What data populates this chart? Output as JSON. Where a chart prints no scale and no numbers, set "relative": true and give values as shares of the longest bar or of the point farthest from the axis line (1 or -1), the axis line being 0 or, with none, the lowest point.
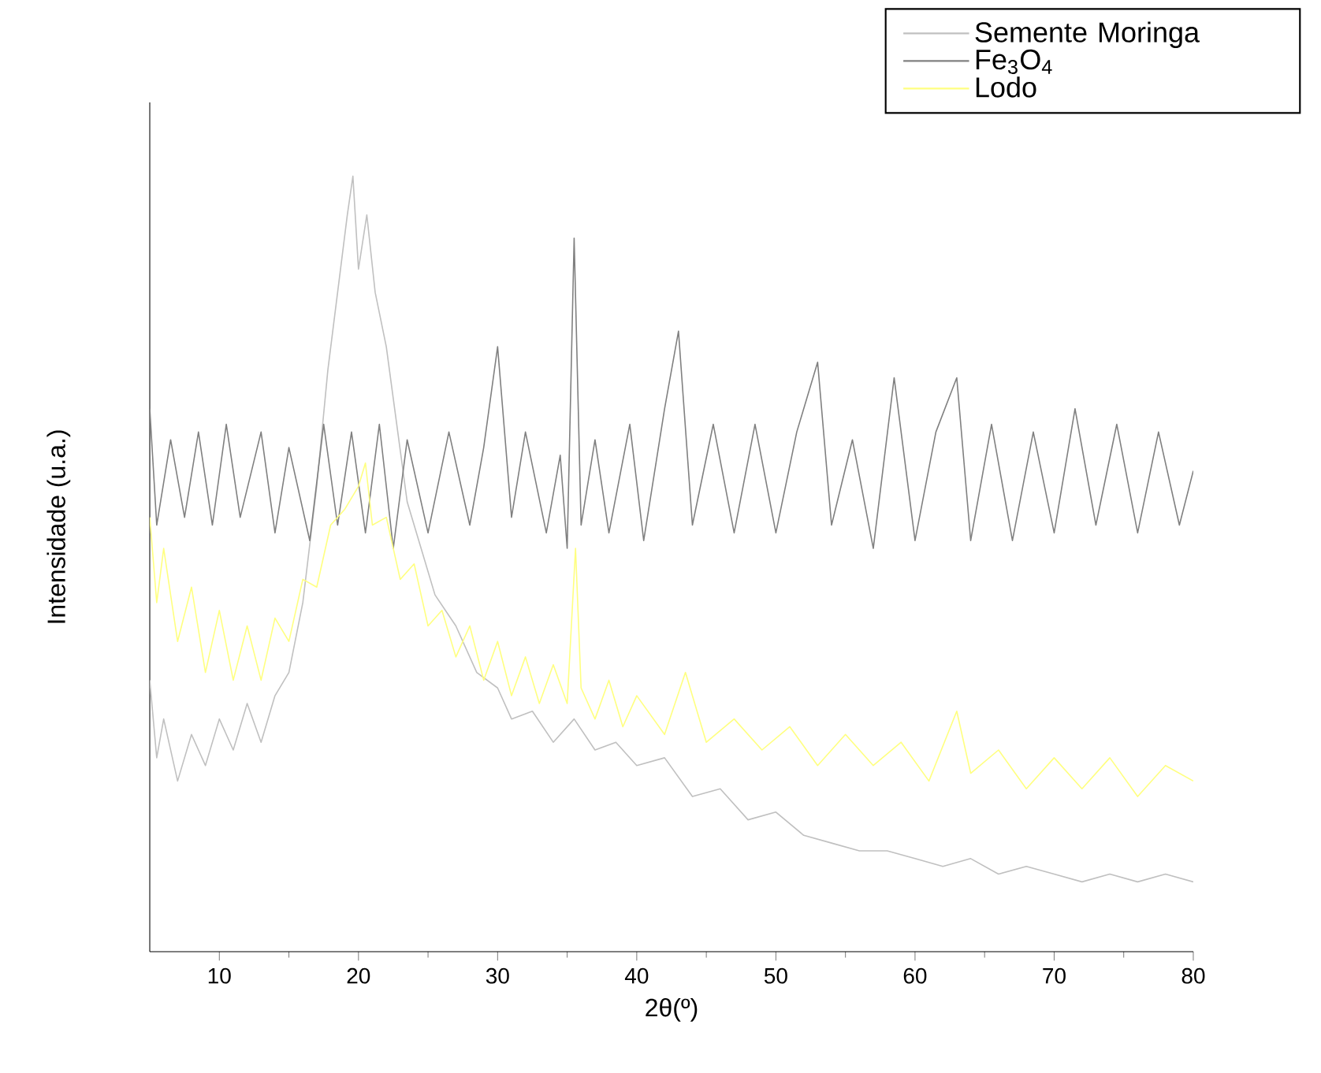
{
  "chart_data": {
    "type": "line",
    "relative": true,
    "xlabel": "2θ(º)",
    "ylabel": "Intensidade (u.a.)",
    "xlim": [
      5,
      80
    ],
    "xticks": [
      10,
      20,
      30,
      40,
      50,
      60,
      70,
      80
    ],
    "legend": "top right",
    "grid": false,
    "series": [
      {
        "name": "Semente Moringa",
        "color": "#c0c0c0",
        "x": [
          5,
          5.5,
          6,
          7,
          8,
          9,
          10,
          11,
          12,
          13,
          14,
          15,
          16,
          17,
          17.8,
          18.5,
          19.2,
          19.6,
          20,
          20.6,
          21.2,
          22,
          22.6,
          23.5,
          24.5,
          25.5,
          27,
          28.5,
          30,
          31,
          32.5,
          34,
          35.5,
          37,
          38.5,
          40,
          42,
          44,
          46,
          48,
          50,
          52,
          54,
          56,
          58,
          60,
          62,
          64,
          66,
          68,
          70,
          72,
          74,
          76,
          78,
          80
        ],
        "values": [
          0.35,
          0.25,
          0.3,
          0.22,
          0.28,
          0.24,
          0.3,
          0.26,
          0.32,
          0.27,
          0.33,
          0.36,
          0.45,
          0.6,
          0.75,
          0.85,
          0.95,
          1.0,
          0.88,
          0.95,
          0.85,
          0.78,
          0.7,
          0.58,
          0.52,
          0.46,
          0.42,
          0.36,
          0.34,
          0.3,
          0.31,
          0.27,
          0.3,
          0.26,
          0.27,
          0.24,
          0.25,
          0.2,
          0.21,
          0.17,
          0.18,
          0.15,
          0.14,
          0.13,
          0.13,
          0.12,
          0.11,
          0.12,
          0.1,
          0.11,
          0.1,
          0.09,
          0.1,
          0.09,
          0.1,
          0.09
        ]
      },
      {
        "name": "Fe$_{3}$O$_{4}$",
        "color": "#808080",
        "x": [
          5,
          5.5,
          6.5,
          7.5,
          8.5,
          9.5,
          10.5,
          11.5,
          13,
          14,
          15,
          16.5,
          17.5,
          18.5,
          19.5,
          20.5,
          21.5,
          22.5,
          23.5,
          25,
          26.5,
          28,
          29,
          30,
          31,
          32,
          33.5,
          34.5,
          35,
          35.5,
          36,
          37,
          38,
          39.5,
          40.5,
          42,
          43,
          44,
          45.5,
          47,
          48.5,
          50,
          51.5,
          53,
          54,
          55.5,
          57,
          58.5,
          60,
          61.5,
          63,
          64,
          65.5,
          67,
          68.5,
          70,
          71.5,
          73,
          74.5,
          76,
          77.5,
          79,
          80
        ],
        "values": [
          0.7,
          0.55,
          0.66,
          0.56,
          0.67,
          0.55,
          0.68,
          0.56,
          0.67,
          0.54,
          0.65,
          0.53,
          0.68,
          0.55,
          0.67,
          0.54,
          0.68,
          0.52,
          0.66,
          0.54,
          0.67,
          0.55,
          0.65,
          0.78,
          0.56,
          0.67,
          0.54,
          0.64,
          0.52,
          0.92,
          0.55,
          0.66,
          0.54,
          0.68,
          0.53,
          0.7,
          0.8,
          0.55,
          0.68,
          0.54,
          0.68,
          0.54,
          0.67,
          0.76,
          0.55,
          0.66,
          0.52,
          0.74,
          0.53,
          0.67,
          0.74,
          0.53,
          0.68,
          0.53,
          0.67,
          0.54,
          0.7,
          0.55,
          0.68,
          0.54,
          0.67,
          0.55,
          0.62
        ]
      },
      {
        "name": "Lodo",
        "color": "#ffff80",
        "x": [
          5,
          5.5,
          6,
          7,
          8,
          9,
          10,
          11,
          12,
          13,
          14,
          15,
          16,
          17,
          18,
          19,
          20,
          20.5,
          21,
          22,
          23,
          24,
          25,
          26,
          27,
          28,
          29,
          30,
          31,
          32,
          33,
          34,
          35,
          35.6,
          36,
          37,
          38,
          39,
          40,
          42,
          43.5,
          45,
          47,
          49,
          51,
          53,
          55,
          57,
          59,
          61,
          63,
          64,
          66,
          68,
          70,
          72,
          74,
          76,
          78,
          80
        ],
        "values": [
          0.56,
          0.45,
          0.52,
          0.4,
          0.47,
          0.36,
          0.44,
          0.35,
          0.42,
          0.35,
          0.43,
          0.4,
          0.48,
          0.47,
          0.55,
          0.57,
          0.6,
          0.63,
          0.55,
          0.56,
          0.48,
          0.5,
          0.42,
          0.44,
          0.38,
          0.42,
          0.35,
          0.4,
          0.33,
          0.38,
          0.32,
          0.37,
          0.32,
          0.52,
          0.34,
          0.3,
          0.35,
          0.29,
          0.33,
          0.28,
          0.36,
          0.27,
          0.3,
          0.26,
          0.29,
          0.24,
          0.28,
          0.24,
          0.27,
          0.22,
          0.31,
          0.23,
          0.26,
          0.21,
          0.25,
          0.21,
          0.25,
          0.2,
          0.24,
          0.22
        ]
      }
    ]
  }
}
